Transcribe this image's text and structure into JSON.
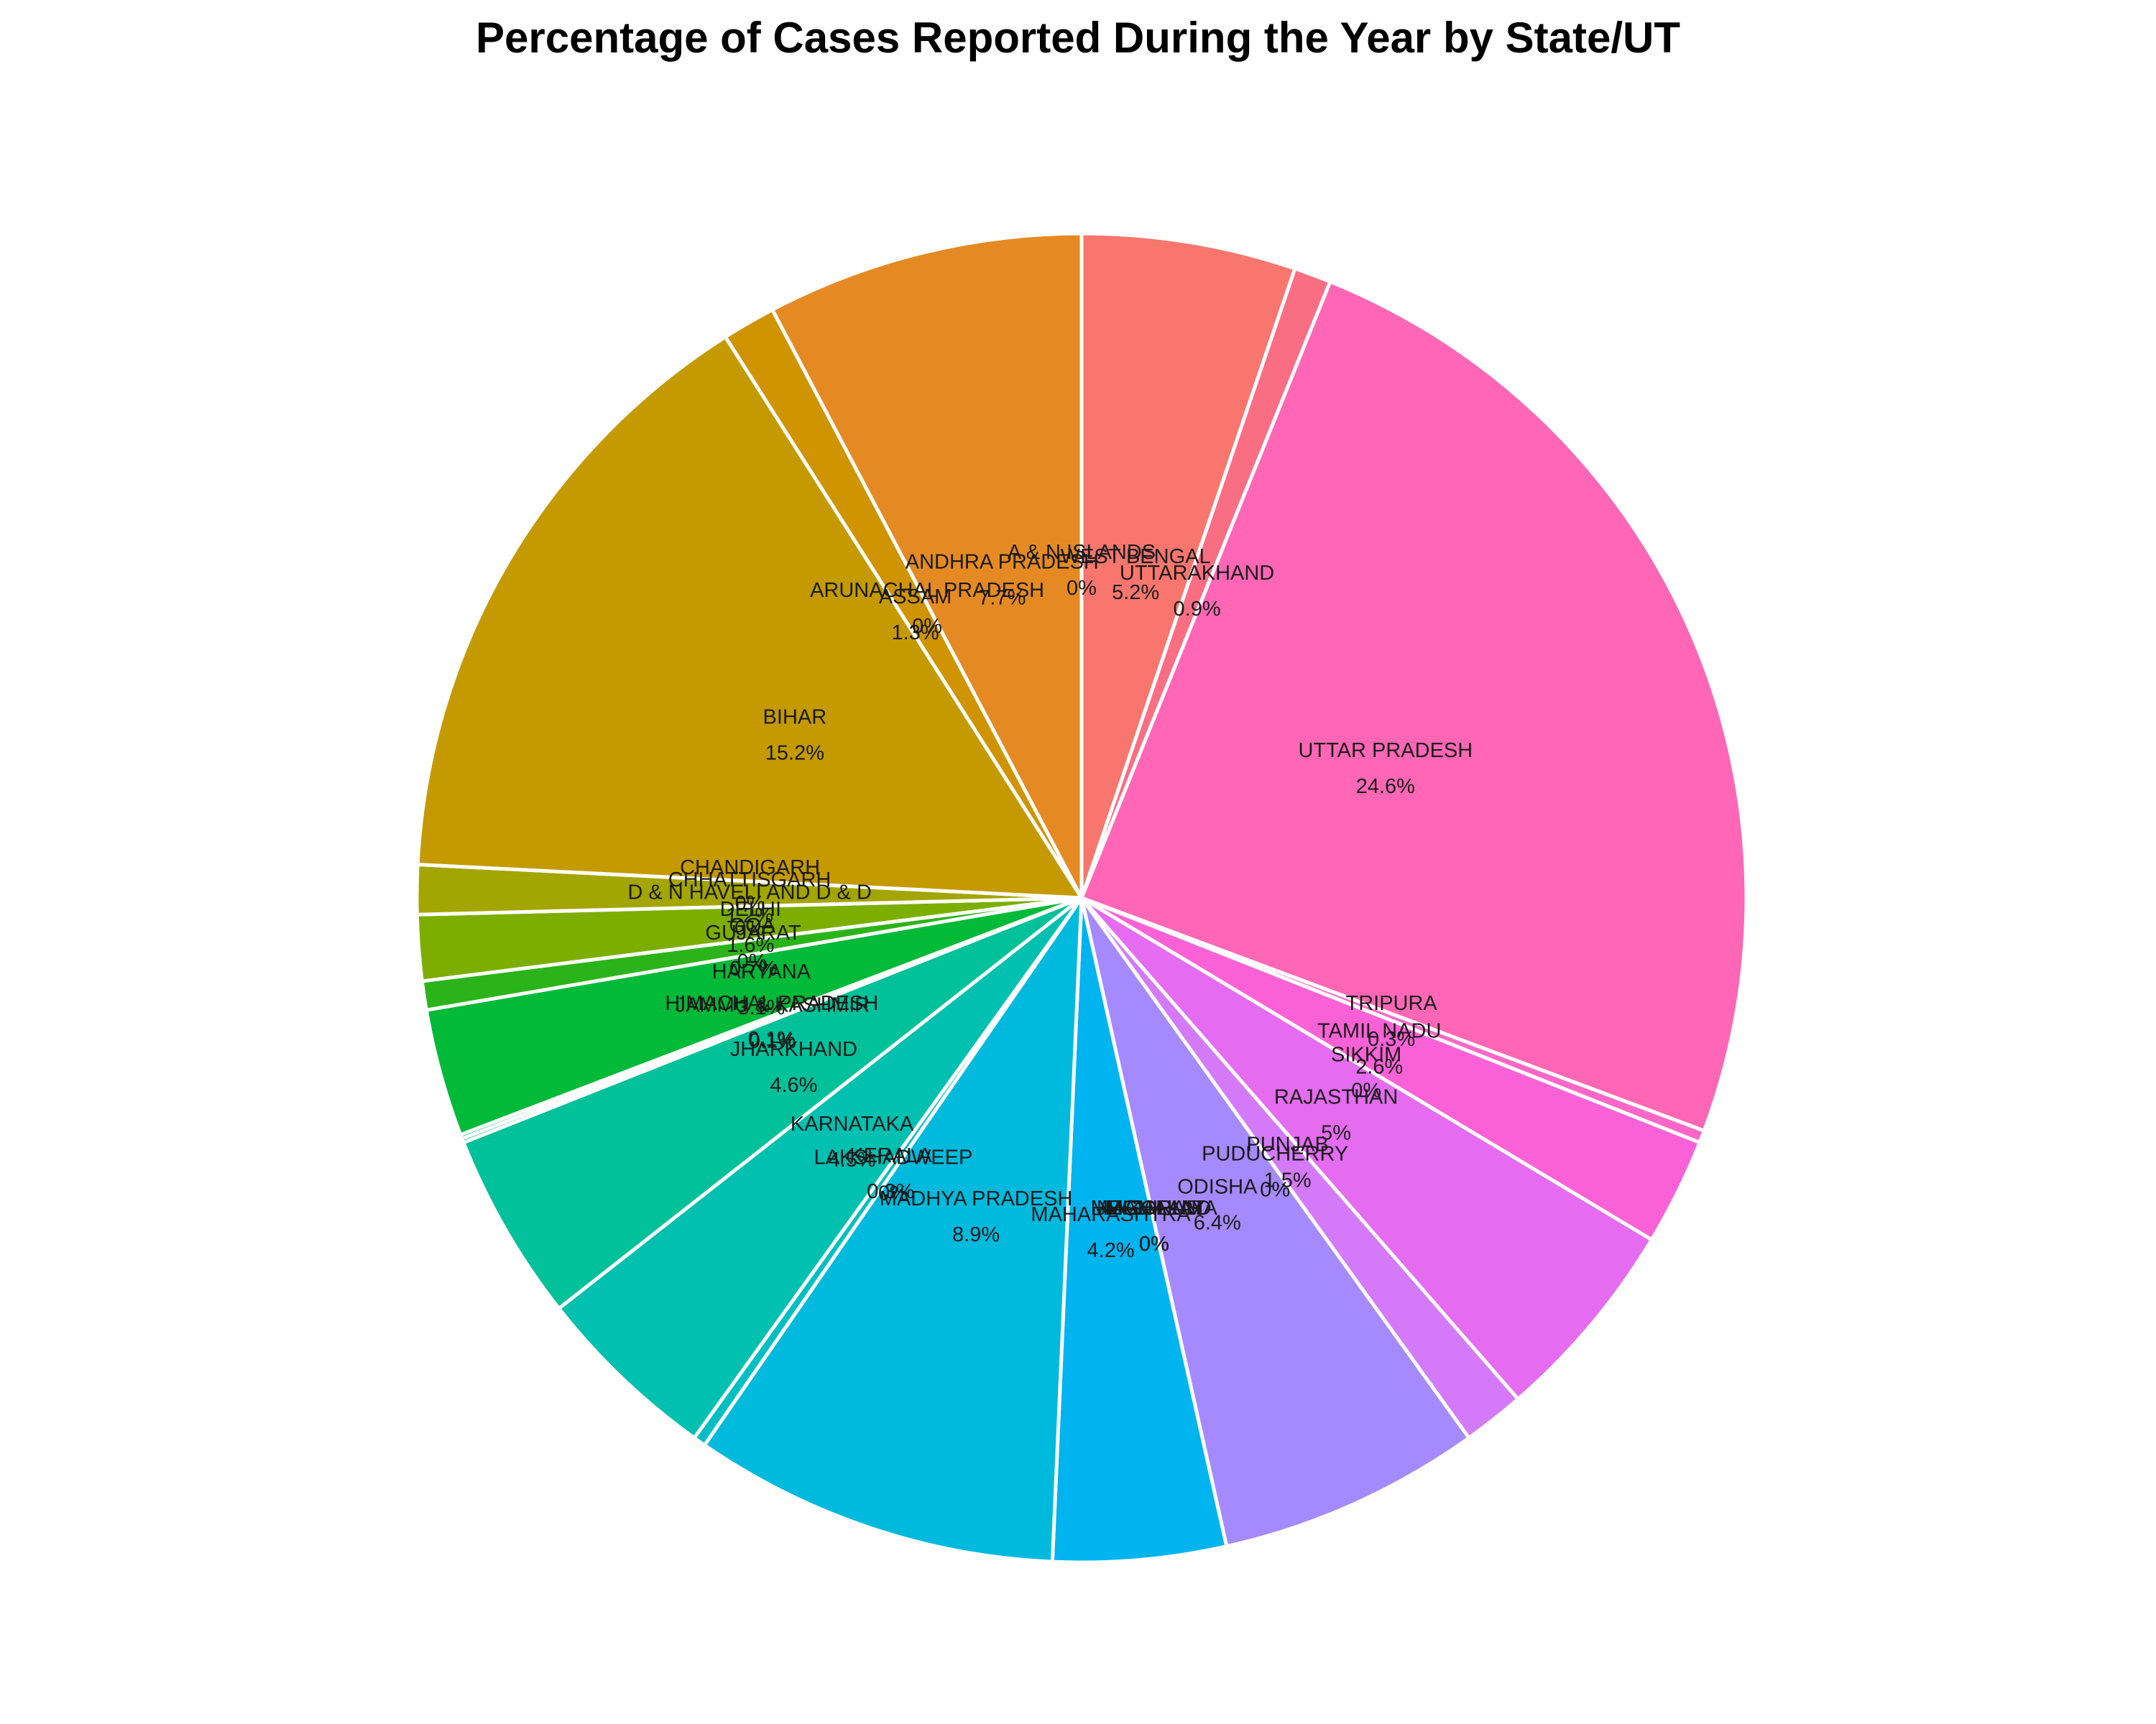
{
  "chart_data": {
    "type": "pie",
    "title": "Percentage of Cases Reported During the Year by State/UT",
    "label_format": "name + percent inside slice",
    "slices": [
      {
        "name": "WEST BENGAL",
        "value": 5.2,
        "value_label": "5.2%",
        "color": "#f8766d"
      },
      {
        "name": "UTTARAKHAND",
        "value": 0.9,
        "value_label": "0.9%",
        "color": "#fa6e84"
      },
      {
        "name": "UTTAR PRADESH",
        "value": 24.6,
        "value_label": "24.6%",
        "color": "#ff66b5"
      },
      {
        "name": "TRIPURA",
        "value": 0.3,
        "value_label": "0.3%",
        "color": "#ff66c8"
      },
      {
        "name": "TAMIL NADU",
        "value": 2.6,
        "value_label": "2.6%",
        "color": "#fb61d7"
      },
      {
        "name": "SIKKIM",
        "value": 0,
        "value_label": "0%",
        "color": "#f564e3"
      },
      {
        "name": "RAJASTHAN",
        "value": 5,
        "value_label": "5%",
        "color": "#e56bf0"
      },
      {
        "name": "PUNJAB",
        "value": 1.5,
        "value_label": "1.5%",
        "color": "#d47af8"
      },
      {
        "name": "PUDUCHERRY",
        "value": 0,
        "value_label": "0%",
        "color": "#c382fc"
      },
      {
        "name": "ODISHA",
        "value": 6.4,
        "value_label": "6.4%",
        "color": "#a58aff"
      },
      {
        "name": "NAGALAND",
        "value": 0,
        "value_label": "0%",
        "color": "#8e94ff"
      },
      {
        "name": "MIZORAM",
        "value": 0,
        "value_label": "0%",
        "color": "#6c9cff"
      },
      {
        "name": "MEGHALAYA",
        "value": 0,
        "value_label": "0%",
        "color": "#3fa5ff"
      },
      {
        "name": "MANIPUR",
        "value": 0,
        "value_label": "0%",
        "color": "#1aaefb"
      },
      {
        "name": "MAHARASHTRA",
        "value": 4.2,
        "value_label": "4.2%",
        "color": "#00b4ef"
      },
      {
        "name": "MADHYA PRADESH",
        "value": 8.9,
        "value_label": "8.9%",
        "color": "#00bade"
      },
      {
        "name": "LAKSHADWEEP",
        "value": 0,
        "value_label": "0%",
        "color": "#00bdcf"
      },
      {
        "name": "KERALA",
        "value": 0.3,
        "value_label": "0.3%",
        "color": "#00bfc4"
      },
      {
        "name": "KARNATAKA",
        "value": 4.5,
        "value_label": "4.5%",
        "color": "#00c0b0"
      },
      {
        "name": "JHARKHAND",
        "value": 4.6,
        "value_label": "4.6%",
        "color": "#00c19a"
      },
      {
        "name": "JAMMU & KASHMIR",
        "value": 0.1,
        "value_label": "0.1%",
        "color": "#00c080"
      },
      {
        "name": "HIMACHAL PRADESH",
        "value": 0.1,
        "value_label": "0.1%",
        "color": "#00be67"
      },
      {
        "name": "HARYANA",
        "value": 3.1,
        "value_label": "3.1%",
        "color": "#00ba38"
      },
      {
        "name": "GUJARAT",
        "value": 0.7,
        "value_label": "0.7%",
        "color": "#2bb419"
      },
      {
        "name": "GOA",
        "value": 0,
        "value_label": "0%",
        "color": "#53b400"
      },
      {
        "name": "DELHI",
        "value": 1.6,
        "value_label": "1.6%",
        "color": "#7cae00"
      },
      {
        "name": "D & N HAVELI AND D & D",
        "value": 0,
        "value_label": "0%",
        "color": "#94aa00"
      },
      {
        "name": "CHHATTISGARH",
        "value": 1.2,
        "value_label": "1.2%",
        "color": "#a3a500"
      },
      {
        "name": "CHANDIGARH",
        "value": 0,
        "value_label": "0%",
        "color": "#b79f00"
      },
      {
        "name": "BIHAR",
        "value": 15.2,
        "value_label": "15.2%",
        "color": "#c49a00"
      },
      {
        "name": "ASSAM",
        "value": 1.3,
        "value_label": "1.3%",
        "color": "#cf9400"
      },
      {
        "name": "ARUNACHAL PRADESH",
        "value": 0,
        "value_label": "0%",
        "color": "#d89000"
      },
      {
        "name": "ANDHRA PRADESH",
        "value": 7.7,
        "value_label": "7.7%",
        "color": "#e58a22"
      },
      {
        "name": "A & N ISLANDS",
        "value": 0,
        "value_label": "0%",
        "color": "#ee8044"
      }
    ]
  }
}
